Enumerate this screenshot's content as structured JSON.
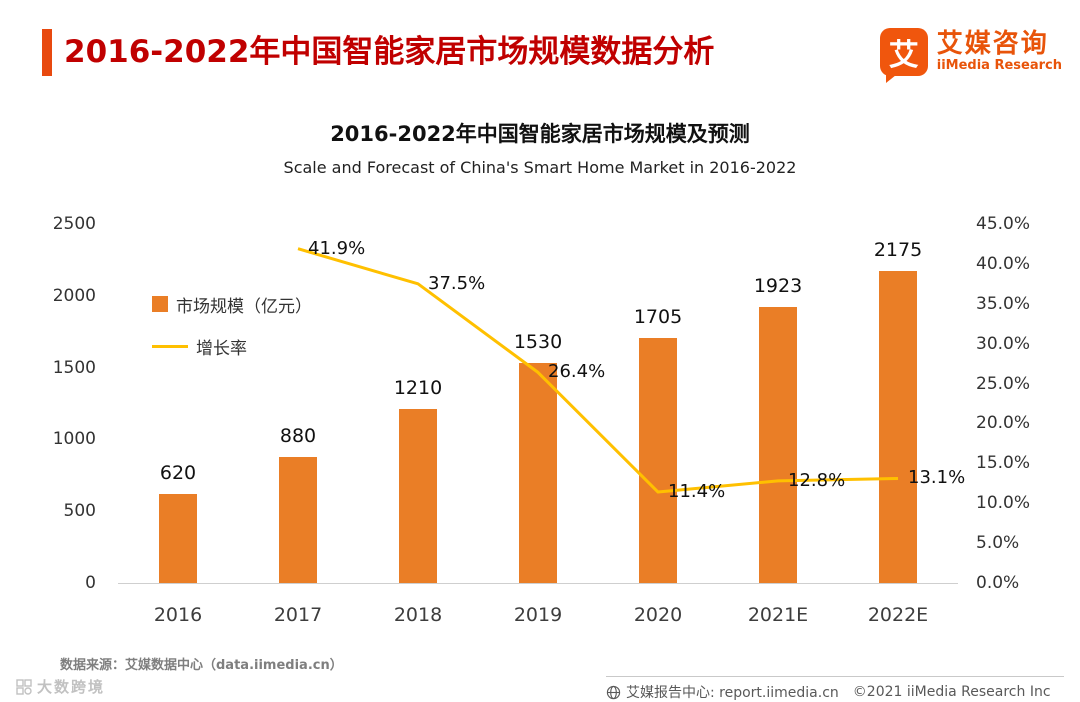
{
  "page": {
    "header_title": "2016-2022年中国智能家居市场规模数据分析",
    "logo": {
      "glyph": "艾",
      "name_cn": "艾媒咨询",
      "name_en": "iiMedia Research"
    }
  },
  "chart_data": {
    "type": "bar",
    "title": "2016-2022年中国智能家居市场规模及预测",
    "subtitle": "Scale and Forecast of China's Smart Home Market in 2016-2022",
    "categories": [
      "2016",
      "2017",
      "2018",
      "2019",
      "2020",
      "2021E",
      "2022E"
    ],
    "series": [
      {
        "name": "市场规模（亿元）",
        "type": "bar",
        "color": "#ea7e26",
        "values": [
          620,
          880,
          1210,
          1530,
          1705,
          1923,
          2175
        ]
      },
      {
        "name": "增长率",
        "type": "line",
        "color": "#ffc000",
        "values": [
          null,
          41.9,
          37.5,
          26.4,
          11.4,
          12.8,
          13.1
        ],
        "labels": [
          "",
          "41.9%",
          "37.5%",
          "26.4%",
          "11.4%",
          "12.8%",
          "13.1%"
        ]
      }
    ],
    "left_axis": {
      "ticks": [
        0,
        500,
        1000,
        1500,
        2000,
        2500
      ],
      "max": 2500
    },
    "right_axis": {
      "ticks": [
        "0.0%",
        "5.0%",
        "10.0%",
        "15.0%",
        "20.0%",
        "25.0%",
        "30.0%",
        "35.0%",
        "40.0%",
        "45.0%"
      ],
      "max": 45
    },
    "grid": false,
    "legend_position": "inside-left"
  },
  "footer": {
    "source": "数据来源：艾媒数据中心（data.iimedia.cn）",
    "report_center": "艾媒报告中心: report.iimedia.cn",
    "copyright": "©2021  iiMedia Research Inc",
    "watermark": "大数跨境"
  },
  "colors": {
    "accent_bar": "#e8490f",
    "title_red": "#c00000",
    "bar_orange": "#ea7e26",
    "line_yellow": "#ffc000",
    "logo_orange": "#f0560d"
  }
}
